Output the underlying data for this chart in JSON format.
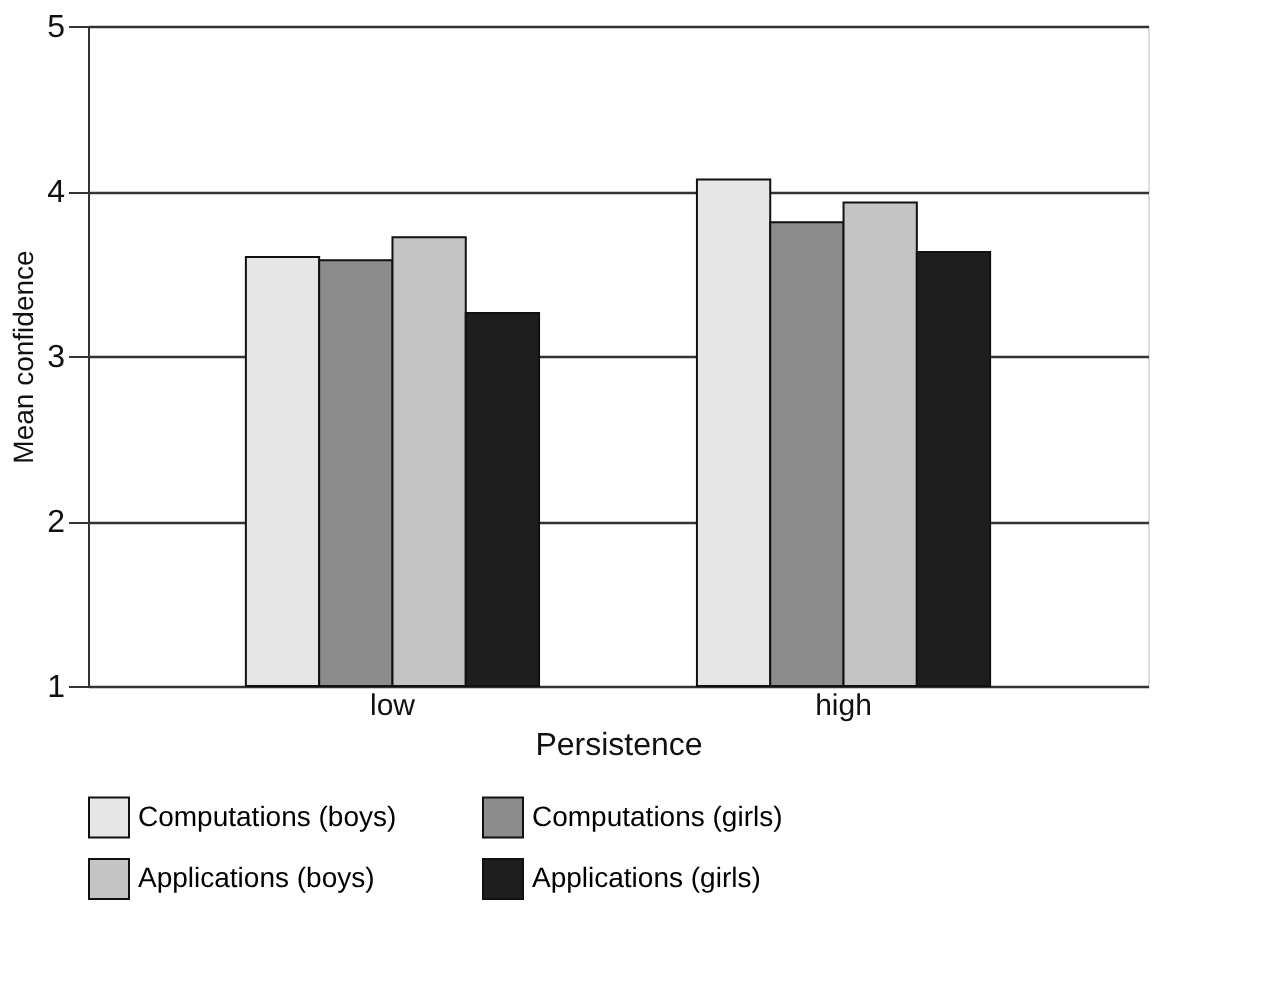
{
  "chart_data": {
    "type": "bar",
    "xlabel": "Persistence",
    "ylabel": "Mean confidence",
    "categories": [
      "low",
      "high"
    ],
    "series": [
      {
        "name": "Computations (boys)",
        "color": "#e6e6e6",
        "values": [
          3.6,
          4.07
        ]
      },
      {
        "name": "Computations (girls)",
        "color": "#8c8c8c",
        "values": [
          3.58,
          3.81
        ]
      },
      {
        "name": "Applications (boys)",
        "color": "#c4c4c4",
        "values": [
          3.72,
          3.93
        ]
      },
      {
        "name": "Applications (girls)",
        "color": "#1e1e1e",
        "values": [
          3.26,
          3.63
        ]
      }
    ],
    "ylim": [
      1,
      5
    ],
    "yticks": [
      1,
      2,
      3,
      4,
      5
    ],
    "grid": "y",
    "legend": "bottom"
  }
}
